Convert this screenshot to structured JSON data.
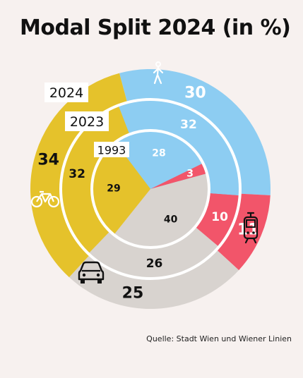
{
  "title": "Modal Split 2024 (in %)",
  "source": "Quelle: Stadt Wien und Wiener Linien",
  "colors": {
    "walking": "#8dcdf2",
    "cycling": "#f2556a",
    "car": "#d8d3cf",
    "transit": "#e5c22b",
    "background": "#f7f1ef"
  },
  "chart_data": {
    "type": "pie",
    "categories": [
      "Zu Fuß",
      "Rad",
      "Auto",
      "Öffis"
    ],
    "icons": [
      "pedestrian-icon",
      "bicycle-icon",
      "car-icon",
      "tram-icon"
    ],
    "rings": [
      {
        "label": "2024",
        "values": [
          30,
          11,
          25,
          34
        ],
        "labels": [
          "30",
          "11",
          "25",
          "34"
        ]
      },
      {
        "label": "2023",
        "values": [
          32,
          10,
          26,
          32
        ],
        "labels": [
          "32",
          "10",
          "26",
          "32"
        ]
      },
      {
        "label": "1993",
        "values": [
          28,
          3,
          40,
          29
        ],
        "labels": [
          "28",
          "3",
          "40",
          "29"
        ]
      }
    ]
  }
}
